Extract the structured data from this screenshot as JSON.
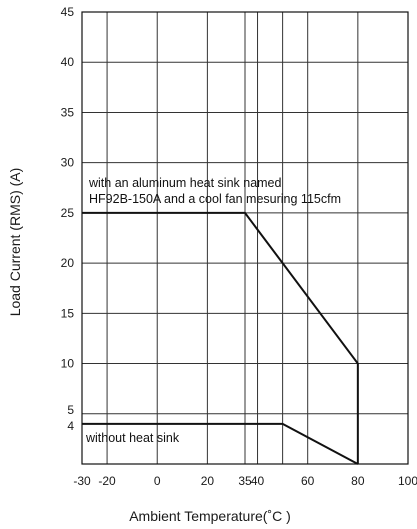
{
  "chart_data": {
    "type": "line",
    "title": "",
    "xlabel": "Ambient Temperature(˚C )",
    "ylabel": "Load  Current (RMS) (A)",
    "xlim": [
      -30,
      100
    ],
    "ylim": [
      0,
      45
    ],
    "x_ticks": [
      -30,
      -20,
      0,
      20,
      35,
      40,
      60,
      80,
      100
    ],
    "y_ticks": [
      45,
      40,
      35,
      30,
      25,
      20,
      15,
      10,
      5,
      4
    ],
    "x_gridlines": [
      -20,
      0,
      20,
      35,
      40,
      50,
      60,
      80
    ],
    "y_gridlines": [
      40,
      35,
      30,
      25,
      20,
      15,
      10,
      5
    ],
    "grid": true,
    "series": [
      {
        "label": "with an aluminum heat sink named HF92B-150A and a cool fan mesuring 115cfm",
        "x": [
          -30,
          35,
          80,
          80
        ],
        "y": [
          25,
          25,
          10,
          0
        ]
      },
      {
        "label": "without heat sink",
        "x": [
          -30,
          50,
          80
        ],
        "y": [
          4,
          4,
          0
        ]
      }
    ],
    "annotations": [
      "with an aluminum heat sink named",
      "HF92B-150A and a cool fan mesuring 115cfm",
      "without heat sink"
    ]
  },
  "colors": {
    "line": "#111111",
    "grid": "#333333",
    "frame": "#111111"
  }
}
